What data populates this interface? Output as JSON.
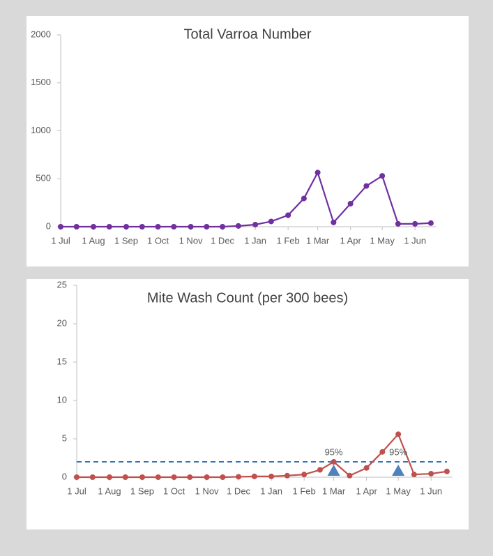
{
  "chart_data": [
    {
      "type": "line",
      "title": "Total Varroa Number",
      "x": [
        0,
        15,
        31,
        46,
        62,
        77,
        92,
        107,
        123,
        138,
        153,
        168,
        184,
        199,
        215,
        230,
        243,
        258,
        274,
        289,
        304,
        319,
        335,
        350
      ],
      "series": [
        {
          "color": "#7030a0",
          "values": [
            0,
            0,
            0,
            0,
            0,
            0,
            0,
            0,
            0,
            0,
            0,
            8,
            22,
            55,
            120,
            295,
            565,
            45,
            240,
            425,
            530,
            30,
            30,
            38
          ]
        }
      ],
      "xlim": [
        0,
        355
      ],
      "xticks": [
        {
          "value": 0,
          "label": "1 Jul"
        },
        {
          "value": 31,
          "label": "1 Aug"
        },
        {
          "value": 62,
          "label": "1 Sep"
        },
        {
          "value": 92,
          "label": "1 Oct"
        },
        {
          "value": 123,
          "label": "1 Nov"
        },
        {
          "value": 153,
          "label": "1 Dec"
        },
        {
          "value": 184,
          "label": "1 Jan"
        },
        {
          "value": 215,
          "label": "1 Feb"
        },
        {
          "value": 243,
          "label": "1 Mar"
        },
        {
          "value": 274,
          "label": "1 Apr"
        },
        {
          "value": 304,
          "label": "1 May"
        },
        {
          "value": 335,
          "label": "1 Jun"
        }
      ],
      "ylim": [
        0,
        2000
      ],
      "yticks": [
        0,
        500,
        1000,
        1500,
        2000
      ]
    },
    {
      "type": "line",
      "title": "Mite Wash Count (per 300 bees)",
      "x": [
        0,
        15,
        31,
        46,
        62,
        77,
        92,
        107,
        123,
        138,
        153,
        168,
        184,
        199,
        215,
        230,
        243,
        258,
        274,
        289,
        304,
        319,
        335,
        350
      ],
      "series": [
        {
          "color": "#c0504d",
          "values": [
            0,
            0,
            0,
            0,
            0,
            0,
            0,
            0,
            0,
            0,
            0.05,
            0.1,
            0.1,
            0.2,
            0.35,
            0.95,
            2.0,
            0.2,
            1.2,
            3.3,
            5.6,
            0.35,
            0.45,
            0.75
          ]
        }
      ],
      "threshold": 2,
      "threshold_color": "#2e75b6",
      "treatments": [
        {
          "x": 243,
          "label": "95%"
        },
        {
          "x": 304,
          "label": "95%"
        }
      ],
      "treatment_color": "#4f81bd",
      "xlim": [
        0,
        355
      ],
      "xticks": [
        {
          "value": 0,
          "label": "1 Jul"
        },
        {
          "value": 31,
          "label": "1 Aug"
        },
        {
          "value": 62,
          "label": "1 Sep"
        },
        {
          "value": 92,
          "label": "1 Oct"
        },
        {
          "value": 123,
          "label": "1 Nov"
        },
        {
          "value": 153,
          "label": "1 Dec"
        },
        {
          "value": 184,
          "label": "1 Jan"
        },
        {
          "value": 215,
          "label": "1 Feb"
        },
        {
          "value": 243,
          "label": "1 Mar"
        },
        {
          "value": 274,
          "label": "1 Apr"
        },
        {
          "value": 304,
          "label": "1 May"
        },
        {
          "value": 335,
          "label": "1 Jun"
        }
      ],
      "ylim": [
        0,
        25
      ],
      "yticks": [
        0,
        5,
        10,
        15,
        20,
        25
      ]
    }
  ]
}
